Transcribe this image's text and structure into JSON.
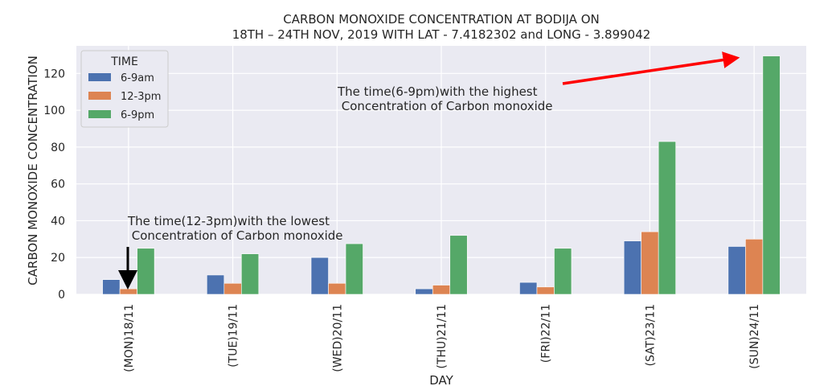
{
  "chart_data": {
    "type": "bar",
    "title": [
      "CARBON MONOXIDE CONCENTRATION AT BODIJA ON",
      "18TH – 24TH NOV, 2019 WITH LAT - 7.4182302 and LONG - 3.899042"
    ],
    "xlabel": "DAY",
    "ylabel": "CARBON MONOXIDE CONCENTRATION",
    "categories": [
      "(MON)18/11",
      "(TUE)19/11",
      "(WED)20/11",
      "(THU)21/11",
      "(FRI)22/11",
      "(SAT)23/11",
      "(SUN)24/11"
    ],
    "series": [
      {
        "name": "6-9am",
        "color": "#4c72b0",
        "values": [
          8,
          10.5,
          20,
          3,
          6.5,
          29,
          26
        ]
      },
      {
        "name": "12-3pm",
        "color": "#dd8452",
        "values": [
          3,
          6,
          6,
          5,
          4,
          34,
          30
        ]
      },
      {
        "name": "6-9pm",
        "color": "#55a868",
        "values": [
          25,
          22,
          27.5,
          32,
          25,
          83,
          129.5
        ]
      }
    ],
    "ylim": [
      0,
      135
    ],
    "yticks": [
      0,
      20,
      40,
      60,
      80,
      100,
      120
    ],
    "grid": true,
    "legend": {
      "title": "TIME",
      "placement": "top-left"
    },
    "annotations": [
      {
        "lines": [
          "The time(12-3pm)with the lowest",
          " Concentration of Carbon monoxide"
        ],
        "arrow_color": "#000000"
      },
      {
        "lines": [
          "The time(6-9pm)with the highest",
          " Concentration of Carbon monoxide"
        ],
        "arrow_color": "#ff0000"
      }
    ]
  }
}
